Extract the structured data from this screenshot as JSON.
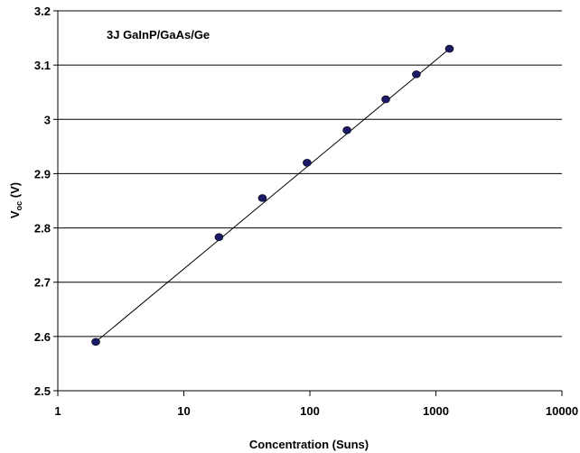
{
  "chart_data": {
    "type": "scatter",
    "annotation": "3J GaInP/GaAs/Ge",
    "xlabel": "Concentration (Suns)",
    "ylabel_main": "V",
    "ylabel_sub": "oc",
    "ylabel_unit": " (V)",
    "x_scale": "log",
    "xlim": [
      1,
      10000
    ],
    "ylim": [
      2.5,
      3.2
    ],
    "x_ticks": [
      "1",
      "10",
      "100",
      "1000",
      "10000"
    ],
    "y_ticks": [
      "2.5",
      "2.6",
      "2.7",
      "2.8",
      "2.9",
      "3",
      "3.1",
      "3.2"
    ],
    "grid": "horizontal",
    "series": [
      {
        "marker_color": "#1a1a66",
        "x": [
          2,
          19,
          42,
          95,
          197,
          400,
          700,
          1280
        ],
        "y": [
          2.59,
          2.783,
          2.855,
          2.92,
          2.98,
          3.037,
          3.083,
          3.13
        ]
      }
    ],
    "fit_line": {
      "x": [
        2,
        1280
      ],
      "y": [
        2.59,
        3.13
      ]
    }
  }
}
